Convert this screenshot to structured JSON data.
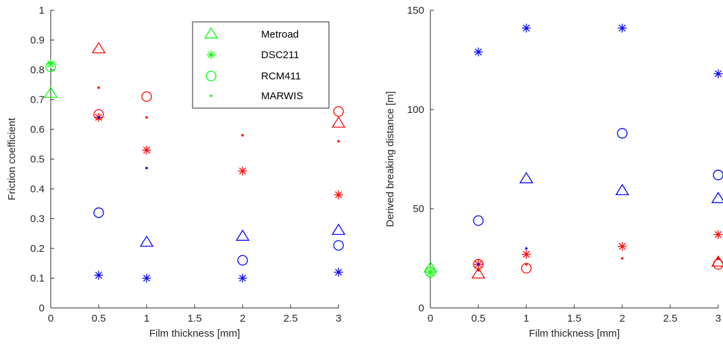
{
  "colors": {
    "red": "#ff0000",
    "blue": "#0000ff",
    "green": "#00ff00",
    "axis": "#262626"
  },
  "legend": {
    "placement": "top-right of left panel",
    "entries": [
      {
        "label": "Metroad",
        "marker": "triangle",
        "color": "#00ff00"
      },
      {
        "label": "DSC211",
        "marker": "asterisk",
        "color": "#00ff00"
      },
      {
        "label": "RCM411",
        "marker": "circle",
        "color": "#00ff00"
      },
      {
        "label": "MARWIS",
        "marker": "dot",
        "color": "#00ff00"
      }
    ]
  },
  "chart_data": [
    {
      "type": "scatter",
      "xlabel": "Film thickness [mm]",
      "ylabel": "Friction coefficient",
      "xlim": [
        0,
        3
      ],
      "ylim": [
        0,
        1
      ],
      "xticks": [
        0,
        0.5,
        1,
        1.5,
        2,
        2.5,
        3
      ],
      "xtick_labels": [
        "0",
        "0.5",
        "1",
        "1.5",
        "2",
        "2.5",
        "3"
      ],
      "yticks": [
        0,
        0.1,
        0.2,
        0.3,
        0.4,
        0.5,
        0.6,
        0.7,
        0.8,
        0.9,
        1
      ],
      "ytick_labels": [
        "0",
        "0.1",
        "0.2",
        "0.3",
        "0.4",
        "0.5",
        "0.6",
        "0.7",
        "0.8",
        "0.9",
        "1"
      ],
      "grid": false,
      "series": [
        {
          "marker": "triangle",
          "color": "#00ff00",
          "points": [
            [
              0,
              0.72
            ]
          ]
        },
        {
          "marker": "asterisk",
          "color": "#00ff00",
          "points": [
            [
              0,
              0.82
            ]
          ]
        },
        {
          "marker": "circle",
          "color": "#00ff00",
          "points": [
            [
              0,
              0.81
            ]
          ]
        },
        {
          "marker": "triangle",
          "color": "#ff0000",
          "points": [
            [
              0.5,
              0.87
            ],
            [
              3,
              0.62
            ]
          ]
        },
        {
          "marker": "asterisk",
          "color": "#ff0000",
          "points": [
            [
              0.5,
              0.64
            ],
            [
              1,
              0.53
            ],
            [
              2,
              0.46
            ],
            [
              3,
              0.38
            ]
          ]
        },
        {
          "marker": "circle",
          "color": "#ff0000",
          "points": [
            [
              0.5,
              0.65
            ],
            [
              1,
              0.71
            ],
            [
              3,
              0.66
            ]
          ]
        },
        {
          "marker": "dot",
          "color": "#ff0000",
          "points": [
            [
              0.5,
              0.74
            ],
            [
              1,
              0.64
            ],
            [
              2,
              0.58
            ],
            [
              3,
              0.56
            ]
          ]
        },
        {
          "marker": "triangle",
          "color": "#0000ff",
          "points": [
            [
              1,
              0.22
            ],
            [
              2,
              0.24
            ],
            [
              3,
              0.26
            ]
          ]
        },
        {
          "marker": "asterisk",
          "color": "#0000ff",
          "points": [
            [
              0.5,
              0.11
            ],
            [
              1,
              0.1
            ],
            [
              2,
              0.1
            ],
            [
              3,
              0.12
            ]
          ]
        },
        {
          "marker": "circle",
          "color": "#0000ff",
          "points": [
            [
              0.5,
              0.32
            ],
            [
              2,
              0.16
            ],
            [
              3,
              0.21
            ]
          ]
        },
        {
          "marker": "dot",
          "color": "#0000ff",
          "points": [
            [
              0.5,
              0.64
            ],
            [
              1,
              0.47
            ]
          ]
        }
      ]
    },
    {
      "type": "scatter",
      "xlabel": "Film thickness [mm]",
      "ylabel": "Derived breaking distance [m]",
      "xlim": [
        0,
        3
      ],
      "ylim": [
        0,
        150
      ],
      "xticks": [
        0,
        0.5,
        1,
        1.5,
        2,
        2.5,
        3
      ],
      "xtick_labels": [
        "0",
        "0.5",
        "1",
        "1.5",
        "2",
        "2.5",
        "3"
      ],
      "yticks": [
        0,
        50,
        100,
        150
      ],
      "ytick_labels": [
        "0",
        "50",
        "100",
        "150"
      ],
      "grid": false,
      "series": [
        {
          "marker": "triangle",
          "color": "#00ff00",
          "points": [
            [
              0,
              20
            ]
          ]
        },
        {
          "marker": "asterisk",
          "color": "#00ff00",
          "points": [
            [
              0,
              18
            ]
          ]
        },
        {
          "marker": "circle",
          "color": "#00ff00",
          "points": [
            [
              0,
              18
            ]
          ]
        },
        {
          "marker": "triangle",
          "color": "#ff0000",
          "points": [
            [
              0.5,
              17
            ],
            [
              3,
              23
            ]
          ]
        },
        {
          "marker": "asterisk",
          "color": "#ff0000",
          "points": [
            [
              0.5,
              22
            ],
            [
              1,
              27
            ],
            [
              2,
              31
            ],
            [
              3,
              37
            ]
          ]
        },
        {
          "marker": "circle",
          "color": "#ff0000",
          "points": [
            [
              0.5,
              22
            ],
            [
              1,
              20
            ],
            [
              3,
              22
            ]
          ]
        },
        {
          "marker": "dot",
          "color": "#ff0000",
          "points": [
            [
              0.5,
              19
            ],
            [
              1,
              22
            ],
            [
              2,
              25
            ],
            [
              3,
              25
            ]
          ]
        },
        {
          "marker": "triangle",
          "color": "#0000ff",
          "points": [
            [
              1,
              65
            ],
            [
              2,
              59
            ],
            [
              3,
              55
            ]
          ]
        },
        {
          "marker": "asterisk",
          "color": "#0000ff",
          "points": [
            [
              0.5,
              129
            ],
            [
              1,
              141
            ],
            [
              2,
              141
            ],
            [
              3,
              118
            ]
          ]
        },
        {
          "marker": "circle",
          "color": "#0000ff",
          "points": [
            [
              0.5,
              44
            ],
            [
              2,
              88
            ],
            [
              3,
              67
            ]
          ]
        },
        {
          "marker": "dot",
          "color": "#0000ff",
          "points": [
            [
              0.5,
              22
            ],
            [
              1,
              30
            ]
          ]
        }
      ]
    }
  ]
}
